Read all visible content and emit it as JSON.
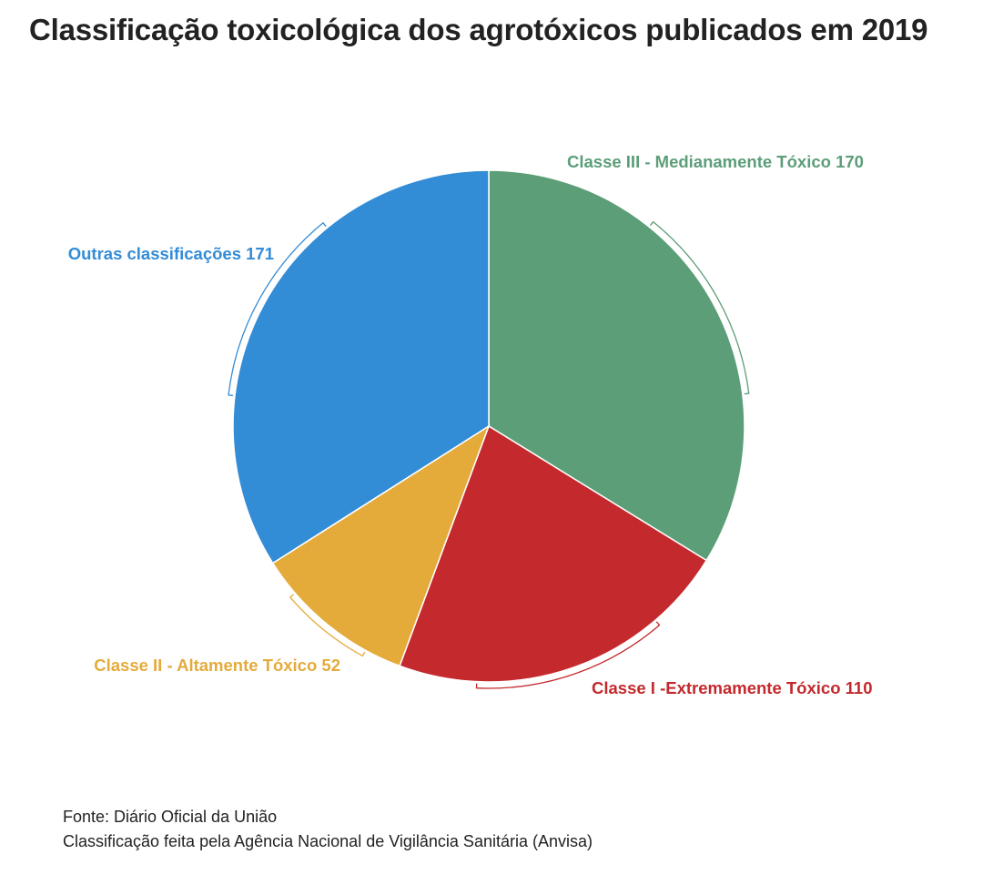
{
  "title": "Classificação toxicológica dos agrotóxicos publicados em 2019",
  "chart_data": {
    "type": "pie",
    "title": "Classificação toxicológica dos agrotóxicos publicados em 2019",
    "slices": [
      {
        "label": "Classe III - Medianamente Tóxico",
        "value": 170,
        "value_text": "170",
        "color": "#5c9e78"
      },
      {
        "label": "Classe I -Extremamente Tóxico",
        "value": 110,
        "value_text": "110",
        "color": "#c4292d"
      },
      {
        "label": "Classe II - Altamente Tóxico",
        "value": 52,
        "value_text": "52",
        "color": "#e4ab3a"
      },
      {
        "label": "Outras classificações",
        "value": 171,
        "value_text": "171",
        "color": "#338cd6"
      }
    ],
    "start": "12 o'clock, clockwise"
  },
  "footer": {
    "source": "Fonte:  Diário Oficial da União",
    "note": "Classificação feita pela Agência Nacional de Vigilância Sanitária (Anvisa)"
  }
}
